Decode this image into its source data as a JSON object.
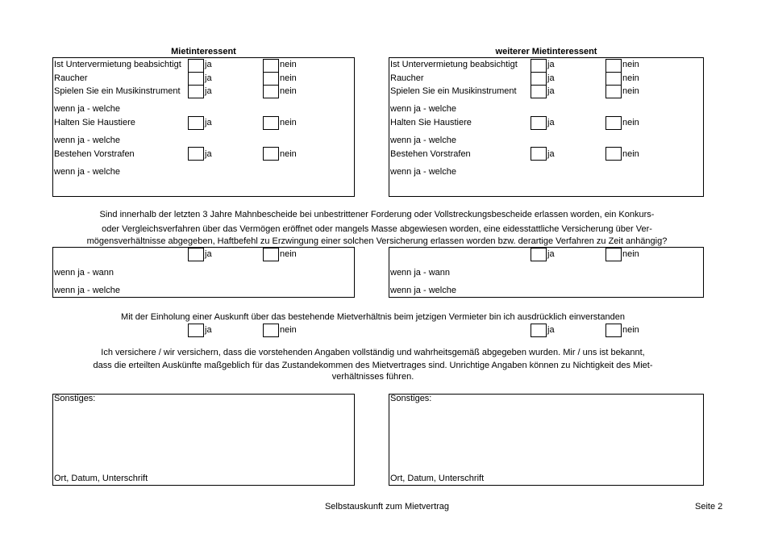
{
  "columns": [
    {
      "title": "Mietinteressent"
    },
    {
      "title": "weiterer Mietinteressent"
    }
  ],
  "questions": {
    "untervermietung": "Ist Untervermietung beabsichtigt",
    "raucher": "Raucher",
    "musik": "Spielen Sie ein Musikinstrument",
    "wenn_welche": "wenn ja - welche",
    "haustiere": "Halten Sie Haustiere",
    "vorstrafen": "Bestehen Vorstrafen",
    "wenn_wann": "wenn ja - wann"
  },
  "yes": "ja",
  "no": "nein",
  "paragraph1": [
    "Sind innerhalb der letzten 3 Jahre Mahnbescheide bei unbestrittener Forderung oder Vollstreckungsbescheide erlassen worden, ein Konkurs-",
    "oder Vergleichsverfahren über das Vermögen eröffnet oder mangels Masse abgewiesen worden, eine eidesstattliche Versicherung über Ver-",
    "mögensverhältnisse abgegeben, Haftbefehl zu Erzwingung einer solchen Versicherung erlassen worden bzw. derartige Verfahren zu Zeit anhängig?"
  ],
  "paragraph2": "Mit der Einholung einer Auskunft über das bestehende Mietverhältnis beim jetzigen Vermieter bin ich ausdrücklich einverstanden",
  "paragraph3": [
    "Ich versichere / wir versichern, dass die vorstehenden Angaben vollständig und wahrheitsgemäß abgegeben wurden. Mir / uns ist bekannt,",
    "dass die erteilten Auskünfte maßgeblich für das Zustandekommen des Mietvertrages sind. Unrichtige Angaben können zu Nichtigkeit des Miet-",
    "verhältnisses führen."
  ],
  "sonstiges": "Sonstiges:",
  "signature": "Ort, Datum, Unterschrift",
  "footer": {
    "title": "Selbstauskunft zum Mietvertrag",
    "page": "Seite 2"
  }
}
